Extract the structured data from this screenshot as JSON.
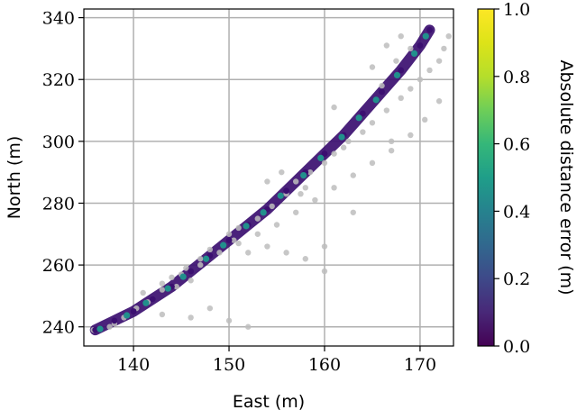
{
  "chart_data": {
    "type": "scatter",
    "xlabel": "East (m)",
    "ylabel": "North (m)",
    "xlim": [
      134.8,
      173.5
    ],
    "ylim": [
      233.8,
      342.8
    ],
    "xticks": [
      140,
      150,
      160,
      170
    ],
    "yticks": [
      240,
      260,
      280,
      300,
      320,
      340
    ],
    "xtick_labels": [
      "140",
      "150",
      "160",
      "170"
    ],
    "ytick_labels": [
      "240",
      "260",
      "280",
      "300",
      "320",
      "340"
    ],
    "grid": true,
    "colorbar": {
      "label": "Absolute distance error (m)",
      "colormap": "viridis",
      "range": [
        0.0,
        1.0
      ],
      "ticks": [
        0.0,
        0.2,
        0.4,
        0.6,
        0.8,
        1.0
      ],
      "tick_labels": [
        "0.0",
        "0.2",
        "0.4",
        "0.6",
        "0.8",
        "1.0"
      ]
    },
    "series": [
      {
        "color": "#bdbdbd",
        "points": [
          [
            135.8,
            239.0
          ],
          [
            137.5,
            240.0
          ],
          [
            139.0,
            243.0
          ],
          [
            140.3,
            246.0
          ],
          [
            141.5,
            248.0
          ],
          [
            143.0,
            252.0
          ],
          [
            144.0,
            256.0
          ],
          [
            145.5,
            259.0
          ],
          [
            147.0,
            262.0
          ],
          [
            148.0,
            265.0
          ],
          [
            150.0,
            270.0
          ],
          [
            151.0,
            272.0
          ],
          [
            153.0,
            275.0
          ],
          [
            154.5,
            279.0
          ],
          [
            156.0,
            283.0
          ],
          [
            157.0,
            287.0
          ],
          [
            158.5,
            290.0
          ],
          [
            160.0,
            293.0
          ],
          [
            161.0,
            296.0
          ],
          [
            162.5,
            300.0
          ],
          [
            164.0,
            303.0
          ],
          [
            165.0,
            306.0
          ],
          [
            166.5,
            310.0
          ],
          [
            168.0,
            314.0
          ],
          [
            169.0,
            317.0
          ],
          [
            170.0,
            320.0
          ],
          [
            171.0,
            323.0
          ],
          [
            172.0,
            326.0
          ],
          [
            172.5,
            330.0
          ],
          [
            173.0,
            334.0
          ],
          [
            141.0,
            251.0
          ],
          [
            143.0,
            254.0
          ],
          [
            145.0,
            257.0
          ],
          [
            147.0,
            260.0
          ],
          [
            149.0,
            264.0
          ],
          [
            151.0,
            267.0
          ],
          [
            153.0,
            270.0
          ],
          [
            155.0,
            273.0
          ],
          [
            157.0,
            277.0
          ],
          [
            159.0,
            281.0
          ],
          [
            161.0,
            285.0
          ],
          [
            163.0,
            289.0
          ],
          [
            165.0,
            293.0
          ],
          [
            167.0,
            297.0
          ],
          [
            169.0,
            302.0
          ],
          [
            170.5,
            307.0
          ],
          [
            172.0,
            313.0
          ],
          [
            152.0,
            264.0
          ],
          [
            154.0,
            266.0
          ],
          [
            156.0,
            264.0
          ],
          [
            158.0,
            262.0
          ],
          [
            160.0,
            258.0
          ],
          [
            148.0,
            246.0
          ],
          [
            150.0,
            242.0
          ],
          [
            152.0,
            240.0
          ],
          [
            143.0,
            244.0
          ],
          [
            146.0,
            243.0
          ],
          [
            160.0,
            266.0
          ],
          [
            163.0,
            277.0
          ],
          [
            167.0,
            300.0
          ],
          [
            158.0,
            285.0
          ],
          [
            155.5,
            290.0
          ],
          [
            154.0,
            287.0
          ],
          [
            162.0,
            298.0
          ],
          [
            166.0,
            318.0
          ],
          [
            165.0,
            324.0
          ],
          [
            167.5,
            326.0
          ],
          [
            169.0,
            330.0
          ],
          [
            168.0,
            334.0
          ],
          [
            166.5,
            331.0
          ],
          [
            161.0,
            311.0
          ],
          [
            138.0,
            241.0
          ],
          [
            142.0,
            249.0
          ],
          [
            144.5,
            253.0
          ],
          [
            146.0,
            255.0
          ],
          [
            150.5,
            268.0
          ],
          [
            157.5,
            283.0
          ]
        ]
      },
      {
        "color": "#3b0f70",
        "points": [
          [
            136.0,
            239.0
          ],
          [
            138.0,
            242.0
          ],
          [
            140.0,
            245.0
          ],
          [
            142.0,
            249.0
          ],
          [
            144.0,
            253.0
          ],
          [
            146.0,
            258.0
          ],
          [
            148.0,
            263.0
          ],
          [
            150.0,
            268.0
          ],
          [
            152.0,
            273.0
          ],
          [
            154.0,
            278.0
          ],
          [
            156.0,
            284.0
          ],
          [
            158.0,
            290.0
          ],
          [
            160.0,
            296.0
          ],
          [
            162.0,
            302.0
          ],
          [
            164.0,
            309.0
          ],
          [
            166.0,
            316.0
          ],
          [
            168.0,
            323.0
          ],
          [
            170.0,
            331.0
          ],
          [
            171.0,
            336.0
          ]
        ]
      },
      {
        "color": "#21908c",
        "points": [
          [
            136.5,
            239.3
          ],
          [
            139.3,
            243.7
          ],
          [
            141.3,
            247.7
          ],
          [
            143.6,
            252.4
          ],
          [
            145.2,
            256.2
          ],
          [
            147.6,
            262.0
          ],
          [
            149.4,
            266.4
          ],
          [
            151.8,
            272.6
          ],
          [
            153.6,
            277.0
          ],
          [
            155.4,
            282.4
          ],
          [
            157.8,
            289.0
          ],
          [
            159.6,
            294.6
          ],
          [
            161.8,
            301.4
          ],
          [
            163.6,
            307.6
          ],
          [
            165.4,
            313.4
          ],
          [
            167.6,
            321.4
          ],
          [
            169.4,
            328.4
          ],
          [
            170.6,
            334.0
          ]
        ]
      }
    ]
  }
}
